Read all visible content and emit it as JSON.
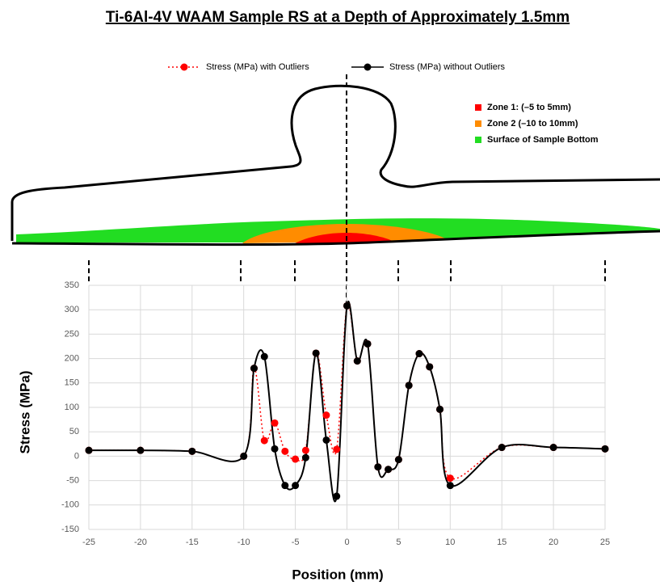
{
  "chart_data": {
    "type": "line",
    "title": "Ti-6Al-4V WAAM Sample RS at a Depth of Approximately 1.5mm",
    "x_label": "Position  (mm)",
    "y_label": "Stress (MPa)",
    "x": [
      -25,
      -20,
      -15,
      -10,
      -9,
      -8,
      -7,
      -6,
      -5,
      -4,
      -3,
      -2,
      -1,
      0,
      1,
      2,
      3,
      4,
      5,
      6,
      7,
      8,
      9,
      10,
      15,
      20,
      25
    ],
    "series": [
      {
        "name": "Stress (MPa) with Outliers",
        "color": "#ff0000",
        "dash": true,
        "values": [
          12,
          12,
          10,
          0,
          180,
          32,
          68,
          10,
          -6,
          12,
          211,
          84,
          14,
          308,
          195,
          230,
          -22,
          -27,
          -7,
          145,
          210,
          183,
          96,
          -45,
          18,
          18,
          15
        ]
      },
      {
        "name": "Stress (MPa) without Outliers",
        "color": "#000000",
        "dash": false,
        "values": [
          12,
          12,
          10,
          0,
          180,
          204,
          15,
          -60,
          -60,
          -3,
          211,
          33,
          -82,
          308,
          195,
          230,
          -22,
          -27,
          -7,
          145,
          210,
          183,
          96,
          -60,
          18,
          18,
          15
        ]
      }
    ],
    "zones": [
      {
        "name": "Zone 1: (–5 to 5mm)",
        "color": "#ff0000"
      },
      {
        "name": "Zone 2 (–10 to 10mm)",
        "color": "#ff8c00"
      },
      {
        "name": "Surface of Sample Bottom",
        "color": "#22dd22"
      }
    ],
    "xlim": [
      -25,
      25
    ],
    "xticks": [
      -25,
      -20,
      -15,
      -10,
      -5,
      0,
      5,
      10,
      15,
      20,
      25
    ],
    "ylim": [
      -150,
      350
    ],
    "yticks": [
      -150,
      -100,
      -50,
      0,
      50,
      100,
      150,
      200,
      250,
      300,
      350
    ],
    "grid": true
  }
}
